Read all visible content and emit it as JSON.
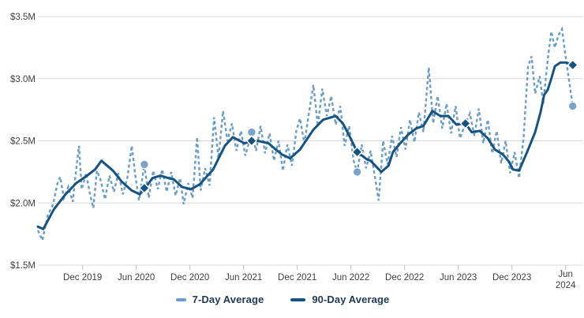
{
  "colors": {
    "background": "#ffffff",
    "grid": "#d9d9d9",
    "axis_tick": "#bdbdbd",
    "tick_label_text": "#3f3f3f",
    "legend_text": "#1f3a54",
    "series_7day": "#6c9dc4",
    "series_90day": "#175380"
  },
  "chart_data": {
    "type": "line",
    "title": "",
    "grid": true,
    "legend_position": "bottom-center",
    "y_axis": {
      "unit": "USD (millions)",
      "range": [
        1.5,
        3.5
      ],
      "ticks": [
        {
          "v": 3.5,
          "label": "$3.5M"
        },
        {
          "v": 3.0,
          "label": "$3.0M"
        },
        {
          "v": 2.5,
          "label": "$2.5M"
        },
        {
          "v": 2.0,
          "label": "$2.0M"
        },
        {
          "v": 1.5,
          "label": "$1.5M"
        }
      ]
    },
    "x_axis": {
      "x_unit": "months elapsed since Jul 2019",
      "range": [
        0,
        60
      ],
      "ticks": [
        {
          "m": 5,
          "label": "Dec 2019"
        },
        {
          "m": 11,
          "label": "Jun 2020"
        },
        {
          "m": 17,
          "label": "Dec 2020"
        },
        {
          "m": 23,
          "label": "Jun 2021"
        },
        {
          "m": 29,
          "label": "Dec 2021"
        },
        {
          "m": 35,
          "label": "Jun 2022"
        },
        {
          "m": 41,
          "label": "Dec 2022"
        },
        {
          "m": 47,
          "label": "Jun 2023"
        },
        {
          "m": 53,
          "label": "Dec 2023"
        },
        {
          "m": 59,
          "label": "Jun 2024",
          "two_line": true
        }
      ]
    },
    "series": [
      {
        "name": "7-Day Average",
        "style": "dashed",
        "color": "#6c9dc4",
        "marker": "circle",
        "marker_color": "#7ba4c6",
        "points": [
          [
            0.0,
            1.78
          ],
          [
            0.5,
            1.7
          ],
          [
            1.1,
            1.9
          ],
          [
            1.7,
            1.99
          ],
          [
            2.2,
            2.16
          ],
          [
            2.5,
            2.21
          ],
          [
            2.9,
            2.04
          ],
          [
            3.4,
            2.13
          ],
          [
            3.9,
            2.01
          ],
          [
            4.3,
            2.28
          ],
          [
            4.6,
            2.46
          ],
          [
            4.9,
            2.11
          ],
          [
            5.4,
            2.24
          ],
          [
            5.8,
            2.08
          ],
          [
            6.2,
            1.96
          ],
          [
            6.6,
            2.26
          ],
          [
            7.0,
            2.19
          ],
          [
            7.5,
            2.03
          ],
          [
            8.0,
            2.22
          ],
          [
            8.5,
            2.09
          ],
          [
            9.0,
            2.24
          ],
          [
            9.5,
            2.07
          ],
          [
            10.0,
            2.2
          ],
          [
            10.5,
            2.46
          ],
          [
            10.9,
            2.22
          ],
          [
            11.3,
            2.02
          ],
          [
            11.9,
            2.31
          ],
          [
            12.4,
            2.04
          ],
          [
            12.9,
            2.26
          ],
          [
            13.4,
            2.11
          ],
          [
            13.9,
            2.27
          ],
          [
            14.4,
            2.09
          ],
          [
            14.9,
            2.25
          ],
          [
            15.4,
            2.06
          ],
          [
            15.9,
            2.2
          ],
          [
            16.3,
            1.99
          ],
          [
            16.8,
            2.16
          ],
          [
            17.3,
            2.04
          ],
          [
            17.8,
            2.53
          ],
          [
            18.2,
            2.1
          ],
          [
            18.7,
            2.28
          ],
          [
            19.2,
            2.14
          ],
          [
            19.7,
            2.69
          ],
          [
            20.2,
            2.36
          ],
          [
            20.7,
            2.74
          ],
          [
            21.2,
            2.5
          ],
          [
            21.7,
            2.64
          ],
          [
            22.2,
            2.42
          ],
          [
            22.7,
            2.58
          ],
          [
            23.2,
            2.38
          ],
          [
            23.9,
            2.57
          ],
          [
            24.4,
            2.42
          ],
          [
            24.9,
            2.62
          ],
          [
            25.4,
            2.4
          ],
          [
            25.9,
            2.56
          ],
          [
            26.4,
            2.34
          ],
          [
            26.9,
            2.5
          ],
          [
            27.4,
            2.26
          ],
          [
            27.9,
            2.47
          ],
          [
            28.4,
            2.3
          ],
          [
            28.9,
            2.58
          ],
          [
            29.3,
            2.68
          ],
          [
            29.8,
            2.48
          ],
          [
            30.3,
            2.72
          ],
          [
            30.8,
            2.95
          ],
          [
            31.3,
            2.62
          ],
          [
            31.8,
            2.92
          ],
          [
            32.3,
            2.7
          ],
          [
            32.8,
            2.86
          ],
          [
            33.3,
            2.63
          ],
          [
            33.8,
            2.78
          ],
          [
            34.3,
            2.46
          ],
          [
            34.8,
            2.62
          ],
          [
            35.3,
            2.34
          ],
          [
            35.7,
            2.25
          ],
          [
            36.2,
            2.47
          ],
          [
            36.7,
            2.28
          ],
          [
            37.2,
            2.42
          ],
          [
            37.7,
            2.2
          ],
          [
            38.1,
            2.02
          ],
          [
            38.6,
            2.5
          ],
          [
            39.1,
            2.31
          ],
          [
            39.6,
            2.54
          ],
          [
            40.1,
            2.37
          ],
          [
            40.6,
            2.61
          ],
          [
            41.1,
            2.43
          ],
          [
            41.6,
            2.67
          ],
          [
            42.1,
            2.49
          ],
          [
            42.6,
            2.73
          ],
          [
            43.1,
            2.57
          ],
          [
            43.7,
            3.09
          ],
          [
            44.2,
            2.64
          ],
          [
            44.7,
            2.86
          ],
          [
            45.2,
            2.6
          ],
          [
            45.7,
            2.8
          ],
          [
            46.2,
            2.56
          ],
          [
            46.7,
            2.78
          ],
          [
            47.2,
            2.52
          ],
          [
            47.8,
            2.64
          ],
          [
            48.3,
            2.72
          ],
          [
            48.8,
            2.54
          ],
          [
            49.3,
            2.76
          ],
          [
            49.8,
            2.48
          ],
          [
            50.3,
            2.67
          ],
          [
            50.8,
            2.4
          ],
          [
            51.3,
            2.58
          ],
          [
            51.8,
            2.32
          ],
          [
            52.3,
            2.5
          ],
          [
            52.8,
            2.24
          ],
          [
            53.3,
            2.41
          ],
          [
            53.8,
            2.2
          ],
          [
            54.3,
            2.52
          ],
          [
            54.8,
            3.1
          ],
          [
            55.2,
            3.18
          ],
          [
            55.6,
            2.88
          ],
          [
            56.1,
            3.02
          ],
          [
            56.5,
            2.8
          ],
          [
            57.0,
            3.15
          ],
          [
            57.4,
            3.38
          ],
          [
            57.8,
            3.25
          ],
          [
            58.2,
            3.35
          ],
          [
            58.6,
            3.4
          ],
          [
            59.0,
            3.18
          ],
          [
            59.4,
            2.98
          ],
          [
            59.8,
            2.78
          ]
        ]
      },
      {
        "name": "90-Day Average",
        "style": "solid",
        "color": "#175380",
        "marker": "diamond",
        "marker_color": "#175380",
        "points": [
          [
            0.0,
            1.81
          ],
          [
            0.6,
            1.79
          ],
          [
            1.8,
            1.95
          ],
          [
            3.1,
            2.07
          ],
          [
            4.3,
            2.16
          ],
          [
            5.5,
            2.22
          ],
          [
            6.4,
            2.27
          ],
          [
            7.1,
            2.34
          ],
          [
            8.4,
            2.26
          ],
          [
            9.4,
            2.17
          ],
          [
            10.5,
            2.1
          ],
          [
            11.4,
            2.07
          ],
          [
            12.0,
            2.12
          ],
          [
            12.8,
            2.2
          ],
          [
            13.7,
            2.22
          ],
          [
            14.6,
            2.2
          ],
          [
            15.2,
            2.19
          ],
          [
            16.1,
            2.13
          ],
          [
            17.1,
            2.11
          ],
          [
            18.1,
            2.15
          ],
          [
            19.6,
            2.27
          ],
          [
            20.9,
            2.46
          ],
          [
            21.8,
            2.53
          ],
          [
            23.1,
            2.48
          ],
          [
            23.9,
            2.5
          ],
          [
            24.6,
            2.5
          ],
          [
            25.8,
            2.48
          ],
          [
            26.6,
            2.43
          ],
          [
            27.3,
            2.39
          ],
          [
            28.2,
            2.36
          ],
          [
            29.3,
            2.43
          ],
          [
            30.8,
            2.59
          ],
          [
            31.9,
            2.67
          ],
          [
            33.3,
            2.7
          ],
          [
            34.1,
            2.64
          ],
          [
            34.9,
            2.53
          ],
          [
            35.7,
            2.41
          ],
          [
            36.8,
            2.35
          ],
          [
            37.2,
            2.34
          ],
          [
            38.4,
            2.25
          ],
          [
            39.2,
            2.3
          ],
          [
            39.7,
            2.41
          ],
          [
            40.5,
            2.48
          ],
          [
            41.4,
            2.55
          ],
          [
            42.3,
            2.6
          ],
          [
            43.1,
            2.62
          ],
          [
            44.1,
            2.74
          ],
          [
            45.0,
            2.7
          ],
          [
            45.9,
            2.7
          ],
          [
            46.8,
            2.63
          ],
          [
            47.8,
            2.64
          ],
          [
            48.5,
            2.57
          ],
          [
            49.4,
            2.58
          ],
          [
            50.3,
            2.52
          ],
          [
            51.1,
            2.43
          ],
          [
            52.0,
            2.39
          ],
          [
            52.7,
            2.33
          ],
          [
            53.1,
            2.27
          ],
          [
            53.8,
            2.26
          ],
          [
            54.7,
            2.41
          ],
          [
            55.6,
            2.57
          ],
          [
            56.2,
            2.73
          ],
          [
            56.6,
            2.87
          ],
          [
            57.0,
            2.91
          ],
          [
            57.4,
            3.0
          ],
          [
            57.8,
            3.1
          ],
          [
            58.4,
            3.13
          ],
          [
            59.1,
            3.13
          ],
          [
            59.8,
            3.11
          ]
        ]
      }
    ],
    "annual_markers": {
      "circles_7day": [
        [
          11.9,
          2.31
        ],
        [
          23.9,
          2.57
        ],
        [
          35.7,
          2.25
        ],
        [
          59.8,
          2.78
        ]
      ],
      "diamonds_90day": [
        [
          11.9,
          2.12
        ],
        [
          23.9,
          2.5
        ],
        [
          35.7,
          2.41
        ],
        [
          47.8,
          2.64
        ],
        [
          59.8,
          3.11
        ]
      ]
    }
  }
}
